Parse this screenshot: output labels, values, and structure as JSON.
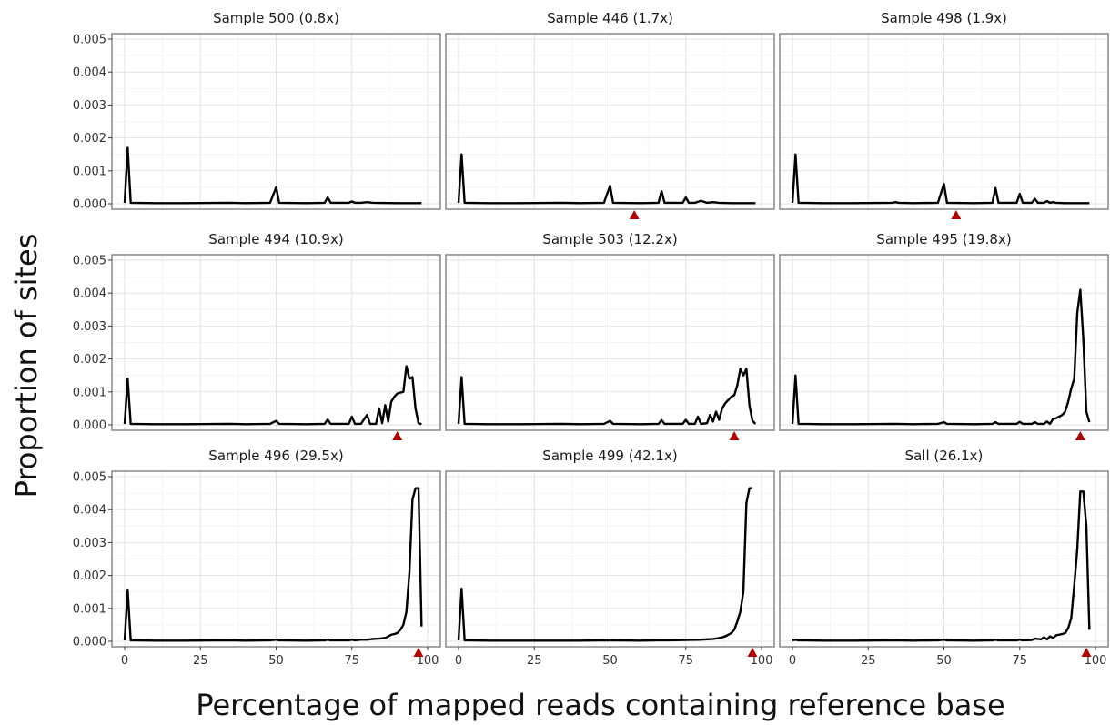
{
  "chart_data": {
    "type": "line",
    "layout": "facet-grid-3x3",
    "xlabel": "Percentage of mapped reads containing reference base",
    "ylabel": "Proportion of sites",
    "xlim": [
      0,
      100
    ],
    "ylim": [
      0,
      0.005
    ],
    "x_ticks": [
      0,
      25,
      50,
      75,
      100
    ],
    "y_ticks": [
      0.0,
      0.001,
      0.002,
      0.003,
      0.004,
      0.005
    ],
    "y_tick_labels": [
      "0.000",
      "0.001",
      "0.002",
      "0.003",
      "0.004",
      "0.005"
    ],
    "grid": true,
    "line_color": "#000000",
    "marker_color": "#b30000",
    "marker_shape": "triangle",
    "panels": [
      {
        "title": "Sample 500 (0.8x)",
        "marker": null,
        "points": [
          [
            0,
            3e-05
          ],
          [
            1,
            0.0017
          ],
          [
            2,
            3e-05
          ],
          [
            10,
            2e-05
          ],
          [
            20,
            2e-05
          ],
          [
            34,
            3e-05
          ],
          [
            40,
            2e-05
          ],
          [
            48,
            3e-05
          ],
          [
            50,
            0.0005
          ],
          [
            51,
            3e-05
          ],
          [
            60,
            2e-05
          ],
          [
            66,
            3e-05
          ],
          [
            67,
            0.00019
          ],
          [
            68,
            3e-05
          ],
          [
            74,
            3e-05
          ],
          [
            75,
            7e-05
          ],
          [
            76,
            3e-05
          ],
          [
            78,
            3e-05
          ],
          [
            80,
            5e-05
          ],
          [
            82,
            3e-05
          ],
          [
            90,
            2e-05
          ],
          [
            98,
            2e-05
          ]
        ]
      },
      {
        "title": "Sample 446 (1.7x)",
        "marker": 58,
        "points": [
          [
            0,
            3e-05
          ],
          [
            1,
            0.0015
          ],
          [
            2,
            3e-05
          ],
          [
            10,
            2e-05
          ],
          [
            20,
            2e-05
          ],
          [
            34,
            3e-05
          ],
          [
            40,
            2e-05
          ],
          [
            48,
            3e-05
          ],
          [
            50,
            0.00055
          ],
          [
            51,
            3e-05
          ],
          [
            60,
            2e-05
          ],
          [
            66,
            3e-05
          ],
          [
            67,
            0.00038
          ],
          [
            68,
            3e-05
          ],
          [
            74,
            3e-05
          ],
          [
            75,
            0.00019
          ],
          [
            76,
            3e-05
          ],
          [
            78,
            3e-05
          ],
          [
            80,
            9e-05
          ],
          [
            82,
            3e-05
          ],
          [
            84,
            5e-05
          ],
          [
            86,
            3e-05
          ],
          [
            90,
            2e-05
          ],
          [
            98,
            2e-05
          ]
        ]
      },
      {
        "title": "Sample 498 (1.9x)",
        "marker": 54,
        "points": [
          [
            0,
            3e-05
          ],
          [
            1,
            0.0015
          ],
          [
            2,
            3e-05
          ],
          [
            10,
            2e-05
          ],
          [
            20,
            2e-05
          ],
          [
            33,
            3e-05
          ],
          [
            34,
            5e-05
          ],
          [
            35,
            3e-05
          ],
          [
            40,
            2e-05
          ],
          [
            48,
            3e-05
          ],
          [
            50,
            0.0006
          ],
          [
            51,
            3e-05
          ],
          [
            60,
            2e-05
          ],
          [
            66,
            3e-05
          ],
          [
            67,
            0.00048
          ],
          [
            68,
            3e-05
          ],
          [
            74,
            3e-05
          ],
          [
            75,
            0.0003
          ],
          [
            76,
            3e-05
          ],
          [
            79,
            3e-05
          ],
          [
            80,
            0.00015
          ],
          [
            81,
            3e-05
          ],
          [
            83,
            3e-05
          ],
          [
            84,
            8e-05
          ],
          [
            85,
            3e-05
          ],
          [
            86,
            5e-05
          ],
          [
            87,
            3e-05
          ],
          [
            90,
            2e-05
          ],
          [
            98,
            2e-05
          ]
        ]
      },
      {
        "title": "Sample 494 (10.9x)",
        "marker": 90,
        "points": [
          [
            0,
            3e-05
          ],
          [
            1,
            0.0014
          ],
          [
            2,
            3e-05
          ],
          [
            10,
            2e-05
          ],
          [
            20,
            2e-05
          ],
          [
            34,
            3e-05
          ],
          [
            40,
            2e-05
          ],
          [
            48,
            3e-05
          ],
          [
            50,
            0.00012
          ],
          [
            51,
            3e-05
          ],
          [
            60,
            2e-05
          ],
          [
            66,
            3e-05
          ],
          [
            67,
            0.00016
          ],
          [
            68,
            3e-05
          ],
          [
            72,
            3e-05
          ],
          [
            74,
            3e-05
          ],
          [
            75,
            0.00025
          ],
          [
            76,
            3e-05
          ],
          [
            78,
            3e-05
          ],
          [
            80,
            0.0003
          ],
          [
            81,
            3e-05
          ],
          [
            83,
            3e-05
          ],
          [
            84,
            0.0005
          ],
          [
            85,
            5e-05
          ],
          [
            86,
            0.0006
          ],
          [
            87,
            0.0001
          ],
          [
            88,
            0.0007
          ],
          [
            89,
            0.00085
          ],
          [
            90,
            0.00095
          ],
          [
            91,
            0.00098
          ],
          [
            92,
            0.001
          ],
          [
            93,
            0.00178
          ],
          [
            94,
            0.0014
          ],
          [
            95,
            0.00145
          ],
          [
            96,
            0.0005
          ],
          [
            97,
            5e-05
          ],
          [
            98,
            2e-05
          ]
        ]
      },
      {
        "title": "Sample 503 (12.2x)",
        "marker": 91,
        "points": [
          [
            0,
            3e-05
          ],
          [
            1,
            0.00145
          ],
          [
            2,
            3e-05
          ],
          [
            10,
            2e-05
          ],
          [
            20,
            2e-05
          ],
          [
            34,
            3e-05
          ],
          [
            40,
            2e-05
          ],
          [
            48,
            3e-05
          ],
          [
            50,
            0.00012
          ],
          [
            51,
            3e-05
          ],
          [
            60,
            2e-05
          ],
          [
            66,
            3e-05
          ],
          [
            67,
            0.00014
          ],
          [
            68,
            3e-05
          ],
          [
            72,
            3e-05
          ],
          [
            74,
            3e-05
          ],
          [
            75,
            0.00015
          ],
          [
            76,
            3e-05
          ],
          [
            78,
            3e-05
          ],
          [
            79,
            0.00025
          ],
          [
            80,
            3e-05
          ],
          [
            82,
            5e-05
          ],
          [
            83,
            0.0003
          ],
          [
            84,
            0.0001
          ],
          [
            85,
            0.0004
          ],
          [
            86,
            0.00015
          ],
          [
            87,
            0.0005
          ],
          [
            88,
            0.00065
          ],
          [
            89,
            0.00075
          ],
          [
            90,
            0.00085
          ],
          [
            91,
            0.0009
          ],
          [
            92,
            0.0012
          ],
          [
            93,
            0.0017
          ],
          [
            94,
            0.0015
          ],
          [
            95,
            0.0017
          ],
          [
            96,
            0.0006
          ],
          [
            97,
            0.00012
          ],
          [
            98,
            3e-05
          ]
        ]
      },
      {
        "title": "Sample 495 (19.8x)",
        "marker": 95,
        "points": [
          [
            0,
            3e-05
          ],
          [
            1,
            0.0015
          ],
          [
            2,
            3e-05
          ],
          [
            10,
            2e-05
          ],
          [
            20,
            2e-05
          ],
          [
            34,
            3e-05
          ],
          [
            40,
            2e-05
          ],
          [
            48,
            3e-05
          ],
          [
            50,
            8e-05
          ],
          [
            51,
            3e-05
          ],
          [
            60,
            2e-05
          ],
          [
            66,
            3e-05
          ],
          [
            67,
            8e-05
          ],
          [
            68,
            3e-05
          ],
          [
            74,
            3e-05
          ],
          [
            75,
            9e-05
          ],
          [
            76,
            3e-05
          ],
          [
            79,
            3e-05
          ],
          [
            80,
            8e-05
          ],
          [
            81,
            3e-05
          ],
          [
            83,
            3e-05
          ],
          [
            84,
            0.0001
          ],
          [
            85,
            3e-05
          ],
          [
            86,
            0.00018
          ],
          [
            87,
            0.0002
          ],
          [
            88,
            0.00025
          ],
          [
            89,
            0.0003
          ],
          [
            90,
            0.0004
          ],
          [
            91,
            0.0007
          ],
          [
            92,
            0.0011
          ],
          [
            93,
            0.0014
          ],
          [
            94,
            0.0034
          ],
          [
            95,
            0.0041
          ],
          [
            96,
            0.0026
          ],
          [
            97,
            0.0004
          ],
          [
            98,
            8e-05
          ]
        ]
      },
      {
        "title": "Sample 496 (29.5x)",
        "marker": 97,
        "points": [
          [
            0,
            3e-05
          ],
          [
            1,
            0.00155
          ],
          [
            2,
            3e-05
          ],
          [
            10,
            2e-05
          ],
          [
            20,
            2e-05
          ],
          [
            34,
            3e-05
          ],
          [
            40,
            2e-05
          ],
          [
            48,
            3e-05
          ],
          [
            50,
            5e-05
          ],
          [
            51,
            3e-05
          ],
          [
            60,
            2e-05
          ],
          [
            66,
            3e-05
          ],
          [
            67,
            5e-05
          ],
          [
            68,
            3e-05
          ],
          [
            74,
            3e-05
          ],
          [
            75,
            5e-05
          ],
          [
            76,
            3e-05
          ],
          [
            78,
            5e-05
          ],
          [
            80,
            5e-05
          ],
          [
            82,
            7e-05
          ],
          [
            84,
            8e-05
          ],
          [
            86,
            0.0001
          ],
          [
            87,
            0.00015
          ],
          [
            88,
            0.0002
          ],
          [
            89,
            0.00022
          ],
          [
            90,
            0.00025
          ],
          [
            91,
            0.00035
          ],
          [
            92,
            0.0005
          ],
          [
            93,
            0.0009
          ],
          [
            94,
            0.0021
          ],
          [
            95,
            0.0043
          ],
          [
            96,
            0.00465
          ],
          [
            97,
            0.00465
          ],
          [
            98,
            0.00045
          ]
        ]
      },
      {
        "title": "Sample 499 (42.1x)",
        "marker": 97,
        "points": [
          [
            0,
            3e-05
          ],
          [
            1,
            0.0016
          ],
          [
            2,
            3e-05
          ],
          [
            10,
            2e-05
          ],
          [
            20,
            2e-05
          ],
          [
            34,
            2e-05
          ],
          [
            40,
            2e-05
          ],
          [
            50,
            3e-05
          ],
          [
            60,
            2e-05
          ],
          [
            66,
            3e-05
          ],
          [
            70,
            3e-05
          ],
          [
            75,
            4e-05
          ],
          [
            80,
            5e-05
          ],
          [
            84,
            7e-05
          ],
          [
            86,
            0.0001
          ],
          [
            87,
            0.00012
          ],
          [
            88,
            0.00015
          ],
          [
            89,
            0.0002
          ],
          [
            90,
            0.00025
          ],
          [
            91,
            0.00035
          ],
          [
            92,
            0.0006
          ],
          [
            93,
            0.0009
          ],
          [
            94,
            0.0015
          ],
          [
            95,
            0.0042
          ],
          [
            96,
            0.00465
          ],
          [
            97,
            0.00465
          ]
        ]
      },
      {
        "title": "Sall (26.1x)",
        "marker": 97,
        "points": [
          [
            0,
            3e-05
          ],
          [
            1,
            5e-05
          ],
          [
            2,
            3e-05
          ],
          [
            10,
            2e-05
          ],
          [
            20,
            2e-05
          ],
          [
            34,
            3e-05
          ],
          [
            40,
            2e-05
          ],
          [
            48,
            3e-05
          ],
          [
            50,
            5e-05
          ],
          [
            51,
            3e-05
          ],
          [
            60,
            2e-05
          ],
          [
            66,
            3e-05
          ],
          [
            67,
            5e-05
          ],
          [
            68,
            3e-05
          ],
          [
            74,
            3e-05
          ],
          [
            75,
            5e-05
          ],
          [
            76,
            3e-05
          ],
          [
            79,
            4e-05
          ],
          [
            80,
            8e-05
          ],
          [
            82,
            6e-05
          ],
          [
            83,
            0.00012
          ],
          [
            84,
            6e-05
          ],
          [
            85,
            0.00015
          ],
          [
            86,
            0.0001
          ],
          [
            87,
            0.00018
          ],
          [
            88,
            0.0002
          ],
          [
            89,
            0.00022
          ],
          [
            90,
            0.00025
          ],
          [
            91,
            0.0004
          ],
          [
            92,
            0.0007
          ],
          [
            93,
            0.0017
          ],
          [
            94,
            0.0028
          ],
          [
            95,
            0.00455
          ],
          [
            96,
            0.00455
          ],
          [
            97,
            0.0035
          ],
          [
            98,
            0.00035
          ]
        ]
      }
    ]
  }
}
